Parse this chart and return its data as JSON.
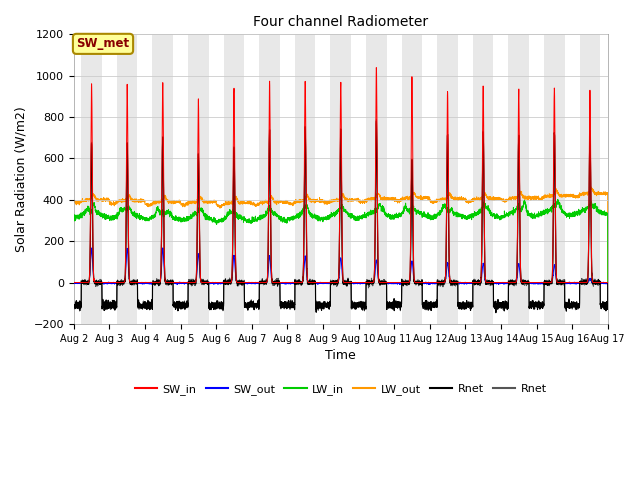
{
  "title": "Four channel Radiometer",
  "xlabel": "Time",
  "ylabel": "Solar Radiation (W/m2)",
  "ylim": [
    -200,
    1200
  ],
  "num_days": 15,
  "start_day": 2,
  "x_tick_labels": [
    "Aug 2",
    "Aug 3",
    "Aug 4",
    "Aug 5",
    "Aug 6",
    "Aug 7",
    "Aug 8",
    "Aug 9",
    "Aug 10",
    "Aug 11",
    "Aug 12",
    "Aug 13",
    "Aug 14",
    "Aug 15",
    "Aug 16",
    "Aug 17"
  ],
  "bg_color": "#ffffff",
  "plot_bg_color": "#ffffff",
  "band_color": "#e8e8e8",
  "legend_entries": [
    "SW_in",
    "SW_out",
    "LW_in",
    "LW_out",
    "Rnet",
    "Rnet"
  ],
  "legend_colors": [
    "#ff0000",
    "#0000ff",
    "#00cc00",
    "#ff9900",
    "#000000",
    "#555555"
  ],
  "annotation_text": "SW_met",
  "annotation_bg": "#ffff99",
  "annotation_border": "#aa8800",
  "annotation_text_color": "#880000",
  "sw_in_peaks": [
    960,
    960,
    970,
    880,
    940,
    970,
    975,
    970,
    1040,
    990,
    920,
    950,
    930,
    940,
    930
  ],
  "rnet_peaks": [
    680,
    670,
    700,
    620,
    660,
    730,
    750,
    740,
    780,
    590,
    720,
    730,
    710,
    730,
    730
  ],
  "sw_out_peaks": [
    165,
    165,
    165,
    140,
    130,
    130,
    130,
    120,
    110,
    105,
    95,
    90,
    90,
    85,
    20
  ],
  "lw_in_base": [
    330,
    325,
    320,
    315,
    310,
    315,
    320,
    325,
    330,
    335,
    330,
    330,
    335,
    340,
    345
  ],
  "lw_out_base": [
    400,
    395,
    390,
    390,
    385,
    390,
    395,
    400,
    405,
    410,
    405,
    405,
    410,
    420,
    430
  ]
}
